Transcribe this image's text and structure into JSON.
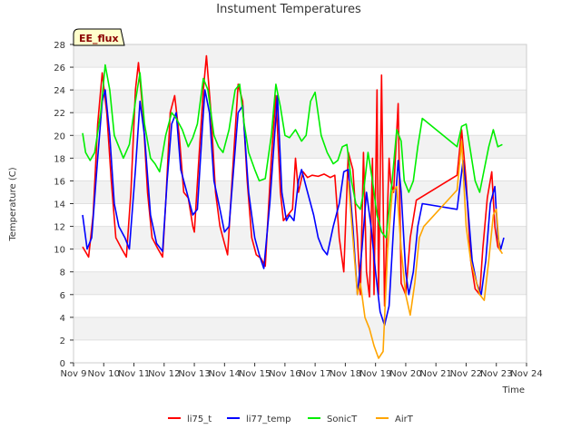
{
  "chart_data": {
    "type": "line",
    "title": "Instument Temperatures",
    "xlabel": "Time",
    "ylabel": "Temperature (C)",
    "site_badge": "EE_flux",
    "xlim": [
      9,
      24
    ],
    "ylim": [
      0,
      28
    ],
    "yticks": [
      0,
      2,
      4,
      6,
      8,
      10,
      12,
      14,
      16,
      18,
      20,
      22,
      24,
      26,
      28
    ],
    "xticks": [
      {
        "v": 9,
        "label": "Nov 9"
      },
      {
        "v": 10,
        "label": "Nov 10"
      },
      {
        "v": 11,
        "label": "Nov 11"
      },
      {
        "v": 12,
        "label": "Nov 12"
      },
      {
        "v": 13,
        "label": "Nov 13"
      },
      {
        "v": 14,
        "label": "Nov 14"
      },
      {
        "v": 15,
        "label": "Nov 15"
      },
      {
        "v": 16,
        "label": "Nov 16"
      },
      {
        "v": 17,
        "label": "Nov 17"
      },
      {
        "v": 18,
        "label": "Nov 18"
      },
      {
        "v": 19,
        "label": "Nov 19"
      },
      {
        "v": 20,
        "label": "Nov 20"
      },
      {
        "v": 21,
        "label": "Nov 21"
      },
      {
        "v": 22,
        "label": "Nov 22"
      },
      {
        "v": 23,
        "label": "Nov 23"
      },
      {
        "v": 24,
        "label": "Nov 24"
      }
    ],
    "grid": "horizontal bands",
    "legend_position": "bottom",
    "series": [
      {
        "name": "li75_t",
        "color": "#ff0000",
        "points": [
          [
            9.3,
            10.2
          ],
          [
            9.5,
            9.3
          ],
          [
            9.65,
            13
          ],
          [
            9.8,
            21
          ],
          [
            9.95,
            25.5
          ],
          [
            10.1,
            22
          ],
          [
            10.25,
            16
          ],
          [
            10.4,
            11
          ],
          [
            10.6,
            10
          ],
          [
            10.75,
            9.3
          ],
          [
            10.9,
            15
          ],
          [
            11.05,
            24
          ],
          [
            11.15,
            26.4
          ],
          [
            11.3,
            22
          ],
          [
            11.45,
            15
          ],
          [
            11.6,
            11
          ],
          [
            11.8,
            10
          ],
          [
            11.95,
            9.3
          ],
          [
            12.05,
            14
          ],
          [
            12.2,
            22
          ],
          [
            12.35,
            23.5
          ],
          [
            12.5,
            20
          ],
          [
            12.65,
            15
          ],
          [
            12.8,
            14.5
          ],
          [
            12.95,
            12
          ],
          [
            13.0,
            11.5
          ],
          [
            13.15,
            18
          ],
          [
            13.3,
            24
          ],
          [
            13.4,
            27
          ],
          [
            13.55,
            22
          ],
          [
            13.7,
            15
          ],
          [
            13.85,
            12
          ],
          [
            14.0,
            10.5
          ],
          [
            14.1,
            9.5
          ],
          [
            14.25,
            16
          ],
          [
            14.45,
            24.5
          ],
          [
            14.6,
            23
          ],
          [
            14.75,
            16
          ],
          [
            14.9,
            11
          ],
          [
            15.05,
            9.5
          ],
          [
            15.2,
            9.2
          ],
          [
            15.35,
            8.5
          ],
          [
            15.55,
            18
          ],
          [
            15.7,
            23.5
          ],
          [
            15.85,
            15
          ],
          [
            15.95,
            12.5
          ],
          [
            16.1,
            13
          ],
          [
            16.25,
            13.5
          ],
          [
            16.35,
            18
          ],
          [
            16.45,
            15
          ],
          [
            16.6,
            16.8
          ],
          [
            16.75,
            16.3
          ],
          [
            16.9,
            16.5
          ],
          [
            17.1,
            16.4
          ],
          [
            17.3,
            16.6
          ],
          [
            17.5,
            16.3
          ],
          [
            17.65,
            16.5
          ],
          [
            17.8,
            11
          ],
          [
            17.95,
            8
          ],
          [
            18.1,
            18.5
          ],
          [
            18.25,
            17
          ],
          [
            18.4,
            11
          ],
          [
            18.5,
            6
          ],
          [
            18.6,
            18.5
          ],
          [
            18.7,
            8
          ],
          [
            18.8,
            5.8
          ],
          [
            18.9,
            18
          ],
          [
            18.95,
            6
          ],
          [
            19.05,
            24
          ],
          [
            19.1,
            6
          ],
          [
            19.2,
            25.3
          ],
          [
            19.3,
            5
          ],
          [
            19.45,
            18
          ],
          [
            19.5,
            16
          ],
          [
            19.6,
            15
          ],
          [
            19.75,
            22.8
          ],
          [
            19.85,
            7
          ],
          [
            20.0,
            6
          ],
          [
            20.15,
            11
          ],
          [
            20.35,
            14.3
          ],
          [
            21.7,
            16.5
          ],
          [
            21.85,
            20.5
          ],
          [
            22.0,
            16
          ],
          [
            22.15,
            9
          ],
          [
            22.3,
            6.5
          ],
          [
            22.45,
            6
          ],
          [
            22.55,
            10
          ],
          [
            22.7,
            14.5
          ],
          [
            22.85,
            16.8
          ],
          [
            22.95,
            12
          ],
          [
            23.05,
            10.2
          ],
          [
            23.15,
            9.8
          ]
        ]
      },
      {
        "name": "li77_temp",
        "color": "#0000ff",
        "points": [
          [
            9.3,
            13
          ],
          [
            9.45,
            10
          ],
          [
            9.6,
            11
          ],
          [
            9.8,
            18
          ],
          [
            9.95,
            23
          ],
          [
            10.05,
            24
          ],
          [
            10.2,
            20
          ],
          [
            10.35,
            14
          ],
          [
            10.5,
            12
          ],
          [
            10.7,
            11
          ],
          [
            10.85,
            10
          ],
          [
            11.05,
            17
          ],
          [
            11.2,
            23
          ],
          [
            11.35,
            20
          ],
          [
            11.55,
            13
          ],
          [
            11.75,
            10.5
          ],
          [
            11.95,
            9.8
          ],
          [
            12.1,
            16
          ],
          [
            12.25,
            21
          ],
          [
            12.4,
            22
          ],
          [
            12.55,
            17
          ],
          [
            12.75,
            15
          ],
          [
            12.95,
            13
          ],
          [
            13.1,
            13.5
          ],
          [
            13.25,
            20
          ],
          [
            13.35,
            24
          ],
          [
            13.5,
            22
          ],
          [
            13.65,
            16
          ],
          [
            13.85,
            13.5
          ],
          [
            14.0,
            11.5
          ],
          [
            14.15,
            12
          ],
          [
            14.3,
            17
          ],
          [
            14.45,
            22
          ],
          [
            14.6,
            22.6
          ],
          [
            14.8,
            15
          ],
          [
            15.0,
            11
          ],
          [
            15.15,
            9.5
          ],
          [
            15.3,
            8.3
          ],
          [
            15.5,
            14
          ],
          [
            15.75,
            23.5
          ],
          [
            15.9,
            15
          ],
          [
            16.05,
            12.5
          ],
          [
            16.15,
            13
          ],
          [
            16.3,
            12.5
          ],
          [
            16.45,
            16
          ],
          [
            16.55,
            17
          ],
          [
            16.75,
            15
          ],
          [
            16.95,
            13
          ],
          [
            17.1,
            11
          ],
          [
            17.25,
            10
          ],
          [
            17.4,
            9.5
          ],
          [
            17.6,
            12
          ],
          [
            17.8,
            14
          ],
          [
            17.95,
            16.8
          ],
          [
            18.1,
            17
          ],
          [
            18.25,
            12
          ],
          [
            18.4,
            6
          ],
          [
            18.55,
            10
          ],
          [
            18.7,
            15
          ],
          [
            18.85,
            12
          ],
          [
            19.0,
            8
          ],
          [
            19.15,
            4.5
          ],
          [
            19.3,
            3.3
          ],
          [
            19.45,
            5
          ],
          [
            19.6,
            12
          ],
          [
            19.75,
            17.8
          ],
          [
            19.85,
            15
          ],
          [
            20.0,
            8
          ],
          [
            20.1,
            6
          ],
          [
            20.25,
            8
          ],
          [
            20.4,
            12
          ],
          [
            20.55,
            14
          ],
          [
            21.7,
            13.5
          ],
          [
            21.9,
            17.8
          ],
          [
            22.05,
            14
          ],
          [
            22.2,
            9
          ],
          [
            22.35,
            7
          ],
          [
            22.5,
            6
          ],
          [
            22.65,
            9
          ],
          [
            22.8,
            14
          ],
          [
            22.95,
            15.5
          ],
          [
            23.05,
            11
          ],
          [
            23.15,
            10
          ],
          [
            23.25,
            11
          ]
        ]
      },
      {
        "name": "SonicT",
        "color": "#00ee00",
        "points": [
          [
            9.3,
            20.2
          ],
          [
            9.4,
            18.5
          ],
          [
            9.55,
            17.8
          ],
          [
            9.7,
            18.5
          ],
          [
            9.9,
            22
          ],
          [
            10.05,
            26.2
          ],
          [
            10.2,
            24
          ],
          [
            10.35,
            20
          ],
          [
            10.5,
            19
          ],
          [
            10.65,
            18
          ],
          [
            10.85,
            19.2
          ],
          [
            11.05,
            23
          ],
          [
            11.2,
            25.5
          ],
          [
            11.35,
            21
          ],
          [
            11.55,
            18
          ],
          [
            11.7,
            17.5
          ],
          [
            11.85,
            16.8
          ],
          [
            12.05,
            20
          ],
          [
            12.25,
            22
          ],
          [
            12.4,
            21.5
          ],
          [
            12.6,
            20.5
          ],
          [
            12.8,
            19
          ],
          [
            12.95,
            19.8
          ],
          [
            13.1,
            21
          ],
          [
            13.3,
            25
          ],
          [
            13.45,
            24
          ],
          [
            13.65,
            20
          ],
          [
            13.8,
            19
          ],
          [
            13.95,
            18.5
          ],
          [
            14.15,
            20.5
          ],
          [
            14.35,
            24
          ],
          [
            14.5,
            24.5
          ],
          [
            14.65,
            21
          ],
          [
            14.8,
            18.5
          ],
          [
            15.0,
            17
          ],
          [
            15.15,
            16
          ],
          [
            15.35,
            16.2
          ],
          [
            15.55,
            20
          ],
          [
            15.7,
            24.5
          ],
          [
            15.85,
            22.5
          ],
          [
            16.0,
            20
          ],
          [
            16.15,
            19.8
          ],
          [
            16.35,
            20.5
          ],
          [
            16.55,
            19.5
          ],
          [
            16.7,
            20
          ],
          [
            16.85,
            23
          ],
          [
            17.0,
            23.8
          ],
          [
            17.2,
            20
          ],
          [
            17.4,
            18.5
          ],
          [
            17.6,
            17.5
          ],
          [
            17.75,
            17.8
          ],
          [
            17.9,
            19
          ],
          [
            18.05,
            19.2
          ],
          [
            18.2,
            16
          ],
          [
            18.35,
            14
          ],
          [
            18.5,
            13.5
          ],
          [
            18.6,
            15
          ],
          [
            18.75,
            18.5
          ],
          [
            18.9,
            16
          ],
          [
            19.05,
            13
          ],
          [
            19.2,
            11.5
          ],
          [
            19.35,
            11
          ],
          [
            19.55,
            16
          ],
          [
            19.7,
            20.5
          ],
          [
            19.85,
            19.5
          ],
          [
            19.95,
            16
          ],
          [
            20.1,
            15
          ],
          [
            20.25,
            16
          ],
          [
            20.4,
            19
          ],
          [
            20.55,
            21.5
          ],
          [
            21.7,
            19
          ],
          [
            21.85,
            20.8
          ],
          [
            22.0,
            21
          ],
          [
            22.15,
            18.5
          ],
          [
            22.3,
            16
          ],
          [
            22.45,
            15
          ],
          [
            22.6,
            17
          ],
          [
            22.75,
            19
          ],
          [
            22.9,
            20.5
          ],
          [
            23.05,
            19
          ],
          [
            23.2,
            19.2
          ]
        ]
      },
      {
        "name": "AirT",
        "color": "#ffa500",
        "points": [
          [
            18.1,
            16
          ],
          [
            18.25,
            11
          ],
          [
            18.4,
            6
          ],
          [
            18.5,
            7
          ],
          [
            18.65,
            4
          ],
          [
            18.8,
            3
          ],
          [
            18.95,
            1.5
          ],
          [
            19.1,
            0.4
          ],
          [
            19.25,
            1
          ],
          [
            19.4,
            10
          ],
          [
            19.55,
            15
          ],
          [
            19.7,
            15.5
          ],
          [
            19.85,
            10
          ],
          [
            20.0,
            6
          ],
          [
            20.15,
            4.2
          ],
          [
            20.3,
            7
          ],
          [
            20.45,
            11
          ],
          [
            20.6,
            12
          ],
          [
            21.7,
            15.2
          ],
          [
            21.85,
            19.5
          ],
          [
            22.0,
            12
          ],
          [
            22.15,
            9
          ],
          [
            22.3,
            7.5
          ],
          [
            22.45,
            6
          ],
          [
            22.6,
            5.5
          ],
          [
            22.75,
            9
          ],
          [
            22.9,
            13
          ],
          [
            23.0,
            13.5
          ],
          [
            23.1,
            10
          ],
          [
            23.2,
            9.6
          ]
        ]
      }
    ]
  }
}
